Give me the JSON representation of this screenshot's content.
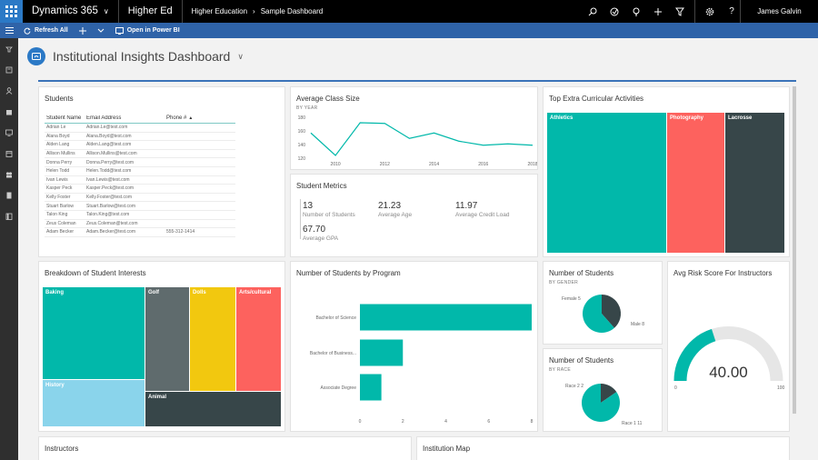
{
  "topbar": {
    "brand": "Dynamics 365",
    "app": "Higher Ed",
    "breadcrumb_area": "Higher Education",
    "breadcrumb_page": "Sample Dashboard",
    "user": "James Galvin"
  },
  "commandbar": {
    "refresh": "Refresh All",
    "powerbi": "Open in Power BI"
  },
  "dashboard": {
    "title": "Institutional Insights Dashboard"
  },
  "students": {
    "title": "Students",
    "columns": [
      "Student Name",
      "Email Address",
      "Phone #"
    ],
    "rows": [
      {
        "name": "Adrian Le",
        "email": "Adrian.Le@test.com",
        "phone": ""
      },
      {
        "name": "Alana Boyd",
        "email": "Alana.Boyd@test.com",
        "phone": ""
      },
      {
        "name": "Alden Lang",
        "email": "Alden.Lang@test.com",
        "phone": ""
      },
      {
        "name": "Allison Mullins",
        "email": "Allison.Mullins@test.com",
        "phone": ""
      },
      {
        "name": "Donna Perry",
        "email": "Donna.Perry@test.com",
        "phone": ""
      },
      {
        "name": "Helen Todd",
        "email": "Helen.Todd@test.com",
        "phone": ""
      },
      {
        "name": "Ivan Lewis",
        "email": "Ivan.Lewis@test.com",
        "phone": ""
      },
      {
        "name": "Kasper Peck",
        "email": "Kasper.Peck@test.com",
        "phone": ""
      },
      {
        "name": "Kelly Foster",
        "email": "Kelly.Foster@test.com",
        "phone": ""
      },
      {
        "name": "Stuart Barlow",
        "email": "Stuart.Barlow@test.com",
        "phone": ""
      },
      {
        "name": "Talon King",
        "email": "Talon.King@test.com",
        "phone": ""
      },
      {
        "name": "Zeus Coleman",
        "email": "Zeus.Coleman@test.com",
        "phone": ""
      },
      {
        "name": "Adam Becker",
        "email": "Adam.Becker@test.com",
        "phone": "555-312-1414"
      }
    ]
  },
  "class_size": {
    "title": "Average Class Size",
    "subtitle": "BY YEAR"
  },
  "metrics": {
    "title": "Student Metrics",
    "num_students": {
      "value": "13",
      "label": "Number of Students"
    },
    "avg_age": {
      "value": "21.23",
      "label": "Average Age"
    },
    "avg_credit": {
      "value": "11.97",
      "label": "Average Credit Load"
    },
    "avg_gpa": {
      "value": "67.70",
      "label": "Average GPA"
    }
  },
  "activities": {
    "title": "Top Extra Curricular Activities",
    "items": [
      "Athletics",
      "Photography",
      "Lacrosse"
    ]
  },
  "interests": {
    "title": "Breakdown of Student Interests",
    "items": [
      "Baking",
      "Golf",
      "Dolls",
      "Arts/cultural",
      "History",
      "Animal"
    ]
  },
  "program": {
    "title": "Number of Students by Program"
  },
  "gender": {
    "title": "Number of Students",
    "subtitle": "BY GENDER",
    "female_label": "Female 5",
    "male_label": "Male 8"
  },
  "race": {
    "title": "Number of Students",
    "subtitle": "BY RACE",
    "race2_label": "Race 2 2",
    "race1_label": "Race 1 11"
  },
  "risk": {
    "title": "Avg Risk Score For Instructors",
    "value": "40.00",
    "min": "0",
    "max": "100"
  },
  "instructors": {
    "title": "Instructors"
  },
  "map": {
    "title": "Institution Map"
  },
  "colors": {
    "teal": "#01b8aa",
    "coral": "#fd625e",
    "dark": "#374649",
    "gray": "#5f6b6d",
    "yellow": "#f2c80f",
    "lightblue": "#8ad4eb",
    "accent": "#2b79c6"
  },
  "chart_data": [
    {
      "type": "line",
      "title": "Average Class Size",
      "subtitle": "BY YEAR",
      "x": [
        2009,
        2010,
        2011,
        2012,
        2013,
        2014,
        2015,
        2016,
        2017,
        2018
      ],
      "y": [
        157,
        124,
        172,
        171,
        149,
        157,
        145,
        139,
        141,
        139
      ],
      "ylim": [
        120,
        180
      ],
      "yticks": [
        120,
        140,
        160,
        180
      ],
      "xticks": [
        2010,
        2012,
        2014,
        2016,
        2018
      ]
    },
    {
      "type": "bar",
      "orientation": "horizontal",
      "title": "Number of Students by Program",
      "categories": [
        "Bachelor of Science",
        "Bachelor of Business...",
        "Associate Degree"
      ],
      "values": [
        8,
        2,
        1
      ],
      "xlim": [
        0,
        8
      ],
      "xticks": [
        0,
        2,
        4,
        6,
        8
      ]
    },
    {
      "type": "pie",
      "title": "Number of Students",
      "subtitle": "BY GENDER",
      "labels": [
        "Female",
        "Male"
      ],
      "values": [
        5,
        8
      ]
    },
    {
      "type": "pie",
      "title": "Number of Students",
      "subtitle": "BY RACE",
      "labels": [
        "Race 2",
        "Race 1"
      ],
      "values": [
        2,
        11
      ]
    },
    {
      "type": "gauge",
      "title": "Avg Risk Score For Instructors",
      "value": 40,
      "min": 0,
      "max": 100
    }
  ]
}
